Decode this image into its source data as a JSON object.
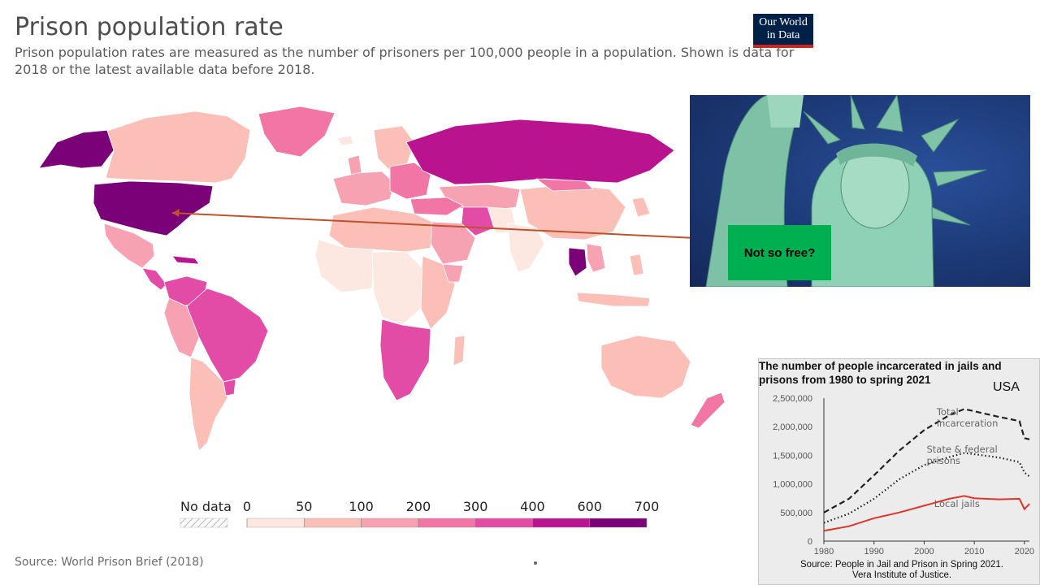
{
  "header": {
    "title": "Prison population rate",
    "subtitle": "Prison population rates are measured as the number of prisoners per 100,000 people in a population. Shown is data for 2018 or the latest available data before 2018.",
    "logo_line1": "Our World",
    "logo_line2": "in Data"
  },
  "legend": {
    "no_data_label": "No data",
    "ticks": [
      "0",
      "50",
      "100",
      "200",
      "300",
      "400",
      "600",
      "700"
    ],
    "colors": [
      "#fde8e1",
      "#fbbfb8",
      "#f7a2b2",
      "#f176a6",
      "#e24ba6",
      "#b9138f",
      "#7a0177"
    ]
  },
  "map": {
    "annotation_text": "Not so free?",
    "arrow_color": "#c0522b"
  },
  "source": "Source: World Prison Brief (2018)",
  "inset_chart": {
    "title_line1": "The number of people incarcerated in jails and",
    "title_line2": "prisons from 1980 to spring 2021",
    "country": "USA",
    "source_line1": "Source: People in Jail and Prison in Spring 2021.",
    "source_line2": "Vera Institute of Justice."
  },
  "chart_data": {
    "type": "line",
    "title": "The number of people incarcerated in jails and prisons from 1980 to spring 2021",
    "x_ticks": [
      "1980",
      "1990",
      "2000",
      "2010",
      "2020"
    ],
    "y_ticks": [
      "0",
      "500,000",
      "1,000,000",
      "1,500,000",
      "2,000,000",
      "2,500,000"
    ],
    "xlim": [
      1980,
      2021
    ],
    "ylim": [
      0,
      2500000
    ],
    "series": [
      {
        "name": "Total incarceration",
        "style": "dashed",
        "color": "#222222",
        "x": [
          1980,
          1985,
          1990,
          1995,
          2000,
          2005,
          2008,
          2010,
          2015,
          2019,
          2020,
          2021
        ],
        "y": [
          500000,
          740000,
          1150000,
          1580000,
          1940000,
          2200000,
          2310000,
          2270000,
          2170000,
          2100000,
          1800000,
          1780000
        ]
      },
      {
        "name": "State & federal prisons",
        "style": "dotted",
        "color": "#222222",
        "x": [
          1980,
          1985,
          1990,
          1995,
          2000,
          2005,
          2008,
          2010,
          2015,
          2019,
          2020,
          2021
        ],
        "y": [
          320000,
          480000,
          740000,
          1080000,
          1330000,
          1470000,
          1540000,
          1520000,
          1460000,
          1380000,
          1200000,
          1130000
        ]
      },
      {
        "name": "Local jails",
        "style": "solid",
        "color": "#e0352b",
        "x": [
          1980,
          1985,
          1990,
          1995,
          2000,
          2005,
          2008,
          2010,
          2015,
          2019,
          2020,
          2021
        ],
        "y": [
          180000,
          260000,
          400000,
          500000,
          620000,
          740000,
          790000,
          750000,
          730000,
          740000,
          560000,
          650000
        ]
      }
    ]
  }
}
